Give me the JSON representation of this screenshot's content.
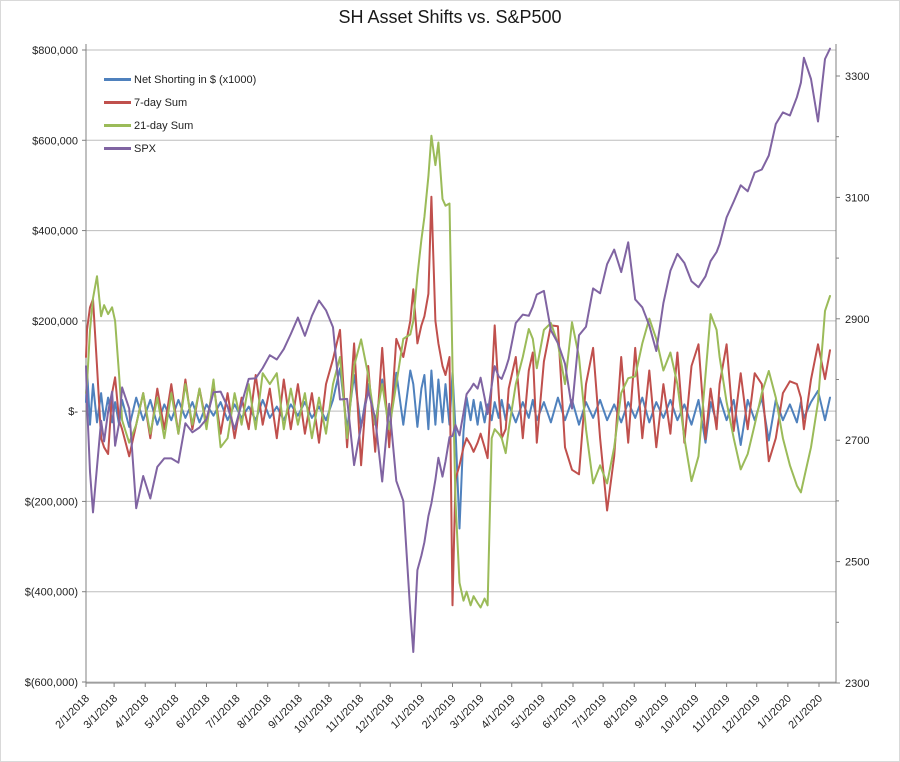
{
  "chart_data": {
    "type": "line",
    "title": "SH Asset Shifts vs. S&P500",
    "x_axis": {
      "unit": "date",
      "start_date": "2/1/2018",
      "end_date": "2/1/2020",
      "tick_labels": [
        "2/1/2018",
        "3/1/2018",
        "4/1/2018",
        "5/1/2018",
        "6/1/2018",
        "7/1/2018",
        "8/1/2018",
        "9/1/2018",
        "10/1/2018",
        "11/1/2018",
        "12/1/2018",
        "1/1/2019",
        "2/1/2019",
        "3/1/2019",
        "4/1/2019",
        "5/1/2019",
        "6/1/2019",
        "7/1/2019",
        "8/1/2019",
        "9/1/2019",
        "10/1/2019",
        "11/1/2019",
        "12/1/2019",
        "1/1/2020",
        "2/1/2020"
      ],
      "tick_day_offsets": [
        0,
        28,
        59,
        89,
        120,
        150,
        181,
        212,
        242,
        273,
        303,
        334,
        365,
        393,
        424,
        454,
        485,
        515,
        546,
        577,
        607,
        638,
        668,
        699,
        730
      ]
    },
    "y_left_axis": {
      "tick_labels": [
        "$800,000",
        "$600,000",
        "$400,000",
        "$200,000",
        "$-",
        "$(200,000)",
        "$(400,000)",
        "$(600,000)"
      ],
      "tick_values": [
        800000,
        600000,
        400000,
        200000,
        0,
        -200000,
        -400000,
        -600000
      ],
      "range": [
        -602000,
        813000
      ],
      "gridlines": true
    },
    "y_right_axis": {
      "tick_labels": [
        "3300",
        "3100",
        "2900",
        "2700",
        "2500",
        "2300"
      ],
      "tick_values": [
        3300,
        3100,
        2900,
        2700,
        2500,
        2300
      ],
      "minor_tick_values": [
        3200,
        3000,
        2800,
        2600,
        2400
      ],
      "range": [
        2300,
        3365
      ]
    },
    "series": [
      {
        "name": "Net Shorting in $ (x1000)",
        "color": "#4F81BD",
        "axis": "left"
      },
      {
        "name": "7-day Sum",
        "color": "#C0504D",
        "axis": "left"
      },
      {
        "name": "21-day Sum",
        "color": "#9BBB59",
        "axis": "left"
      },
      {
        "name": "SPX",
        "color": "#8064A2",
        "axis": "right"
      }
    ],
    "points_format": [
      "day_offset_from_2018-02-01",
      "net_shorting",
      "sum7",
      "sum21",
      "spx"
    ],
    "points": [
      [
        0,
        20000,
        120000,
        40000,
        2822
      ],
      [
        1,
        95000,
        180000,
        60000,
        2762
      ],
      [
        4,
        -30000,
        230000,
        180000,
        2648
      ],
      [
        7,
        60000,
        248000,
        250000,
        2581
      ],
      [
        11,
        -25000,
        100000,
        299000,
        2656
      ],
      [
        15,
        40000,
        -60000,
        210000,
        2732
      ],
      [
        18,
        -20000,
        -80000,
        235000,
        2698
      ],
      [
        22,
        30000,
        -95000,
        215000,
        2747
      ],
      [
        26,
        -25000,
        40000,
        230000,
        2780
      ],
      [
        29,
        20000,
        75000,
        200000,
        2691
      ],
      [
        33,
        -30000,
        -20000,
        80000,
        2728
      ],
      [
        36,
        25000,
        -40000,
        -20000,
        2787
      ],
      [
        43,
        -35000,
        -100000,
        -70000,
        2752
      ],
      [
        50,
        30000,
        -30000,
        -30000,
        2588
      ],
      [
        57,
        -20000,
        40000,
        40000,
        2641
      ],
      [
        64,
        25000,
        -60000,
        -50000,
        2604
      ],
      [
        71,
        -30000,
        50000,
        30000,
        2656
      ],
      [
        78,
        15000,
        -40000,
        -60000,
        2670
      ],
      [
        85,
        -20000,
        60000,
        40000,
        2670
      ],
      [
        92,
        25000,
        -50000,
        -50000,
        2663
      ],
      [
        99,
        -15000,
        70000,
        60000,
        2728
      ],
      [
        106,
        20000,
        -40000,
        -30000,
        2713
      ],
      [
        113,
        -25000,
        50000,
        50000,
        2721
      ],
      [
        120,
        15000,
        -30000,
        -40000,
        2735
      ],
      [
        127,
        -10000,
        60000,
        70000,
        2779
      ],
      [
        134,
        20000,
        -50000,
        -80000,
        2780
      ],
      [
        141,
        -20000,
        40000,
        -60000,
        2755
      ],
      [
        148,
        15000,
        -60000,
        40000,
        2718
      ],
      [
        155,
        -15000,
        30000,
        -30000,
        2760
      ],
      [
        162,
        10000,
        -40000,
        60000,
        2801
      ],
      [
        169,
        -20000,
        80000,
        -40000,
        2802
      ],
      [
        176,
        25000,
        -30000,
        84000,
        2819
      ],
      [
        183,
        -15000,
        50000,
        60000,
        2840
      ],
      [
        190,
        10000,
        -60000,
        84000,
        2833
      ],
      [
        197,
        -20000,
        70000,
        -40000,
        2850
      ],
      [
        204,
        15000,
        -40000,
        50000,
        2875
      ],
      [
        211,
        -10000,
        60000,
        -30000,
        2902
      ],
      [
        218,
        20000,
        -50000,
        40000,
        2872
      ],
      [
        225,
        -15000,
        40000,
        -60000,
        2905
      ],
      [
        232,
        10000,
        -70000,
        30000,
        2930
      ],
      [
        239,
        -20000,
        60000,
        -50000,
        2914
      ],
      [
        246,
        25000,
        115000,
        60000,
        2886
      ],
      [
        253,
        95000,
        180000,
        120000,
        2767
      ],
      [
        260,
        -40000,
        -80000,
        -60000,
        2768
      ],
      [
        267,
        80000,
        150000,
        100000,
        2659
      ],
      [
        274,
        -35000,
        -120000,
        159000,
        2723
      ],
      [
        281,
        60000,
        100000,
        80000,
        2781
      ],
      [
        288,
        -30000,
        -90000,
        -30000,
        2736
      ],
      [
        295,
        70000,
        140000,
        60000,
        2632
      ],
      [
        302,
        -40000,
        -80000,
        -40000,
        2760
      ],
      [
        309,
        85000,
        160000,
        60000,
        2633
      ],
      [
        316,
        -30000,
        120000,
        160000,
        2600
      ],
      [
        323,
        90000,
        200000,
        170000,
        2417
      ],
      [
        326,
        60000,
        270000,
        200000,
        2351
      ],
      [
        330,
        -35000,
        150000,
        300000,
        2486
      ],
      [
        334,
        50000,
        190000,
        380000,
        2510
      ],
      [
        337,
        80000,
        210000,
        430000,
        2532
      ],
      [
        341,
        -40000,
        260000,
        520000,
        2575
      ],
      [
        344,
        90000,
        475000,
        610000,
        2596
      ],
      [
        348,
        -30000,
        200000,
        545000,
        2635
      ],
      [
        351,
        70000,
        150000,
        595000,
        2671
      ],
      [
        355,
        -25000,
        100000,
        470000,
        2640
      ],
      [
        358,
        60000,
        80000,
        455000,
        2665
      ],
      [
        362,
        -30000,
        120000,
        460000,
        2705
      ],
      [
        365,
        85000,
        -430000,
        100000,
        2707
      ],
      [
        368,
        -40000,
        -150000,
        -200000,
        2725
      ],
      [
        372,
        -260000,
        -120000,
        -380000,
        2708
      ],
      [
        376,
        -45000,
        -80000,
        -420000,
        2745
      ],
      [
        379,
        30000,
        -60000,
        -400000,
        2776
      ],
      [
        383,
        -20000,
        -75000,
        -430000,
        2785
      ],
      [
        386,
        25000,
        -90000,
        -410000,
        2793
      ],
      [
        390,
        -30000,
        -70000,
        -425000,
        2785
      ],
      [
        393,
        20000,
        -50000,
        -435000,
        2803
      ],
      [
        397,
        -25000,
        -80000,
        -415000,
        2770
      ],
      [
        400,
        15000,
        -104000,
        -430000,
        2743
      ],
      [
        404,
        -20000,
        60000,
        -60000,
        2790
      ],
      [
        407,
        20000,
        190000,
        -40000,
        2822
      ],
      [
        411,
        -15000,
        40000,
        -50000,
        2805
      ],
      [
        414,
        25000,
        -60000,
        -60000,
        2801
      ],
      [
        418,
        -20000,
        -40000,
        -93000,
        2818
      ],
      [
        421,
        15000,
        50000,
        -40000,
        2834
      ],
      [
        428,
        -25000,
        120000,
        60000,
        2893
      ],
      [
        435,
        20000,
        -60000,
        120000,
        2907
      ],
      [
        441,
        -15000,
        90000,
        182000,
        2905
      ],
      [
        445,
        25000,
        130000,
        160000,
        2920
      ],
      [
        449,
        -20000,
        -70000,
        95000,
        2940
      ],
      [
        456,
        20000,
        110000,
        180000,
        2946
      ],
      [
        463,
        -25000,
        190000,
        195000,
        2881
      ],
      [
        470,
        30000,
        188000,
        150000,
        2860
      ],
      [
        477,
        -20000,
        -80000,
        60000,
        2826
      ],
      [
        484,
        25000,
        -130000,
        197000,
        2752
      ],
      [
        491,
        -30000,
        -140000,
        120000,
        2873
      ],
      [
        498,
        20000,
        60000,
        -40000,
        2887
      ],
      [
        505,
        -15000,
        140000,
        -160000,
        2950
      ],
      [
        512,
        25000,
        -60000,
        -120000,
        2942
      ],
      [
        519,
        -20000,
        -220000,
        -160000,
        2990
      ],
      [
        526,
        15000,
        -100000,
        -80000,
        3014
      ],
      [
        533,
        -25000,
        120000,
        40000,
        2977
      ],
      [
        540,
        20000,
        -70000,
        73000,
        3026
      ],
      [
        547,
        -15000,
        140000,
        77000,
        2932
      ],
      [
        554,
        30000,
        -60000,
        150000,
        2919
      ],
      [
        561,
        -25000,
        90000,
        205000,
        2889
      ],
      [
        568,
        20000,
        -80000,
        160000,
        2847
      ],
      [
        575,
        -15000,
        60000,
        90000,
        2926
      ],
      [
        582,
        25000,
        -50000,
        130000,
        2979
      ],
      [
        589,
        -20000,
        130000,
        60000,
        3007
      ],
      [
        596,
        15000,
        -70000,
        -60000,
        2992
      ],
      [
        603,
        -30000,
        100000,
        -155000,
        2962
      ],
      [
        610,
        25000,
        148000,
        -100000,
        2952
      ],
      [
        617,
        -70000,
        -62000,
        80000,
        2970
      ],
      [
        622,
        20000,
        50000,
        215000,
        2995
      ],
      [
        628,
        -25000,
        -40000,
        180000,
        3010
      ],
      [
        631,
        30000,
        60000,
        120000,
        3023
      ],
      [
        638,
        -20000,
        148000,
        20000,
        3067
      ],
      [
        645,
        25000,
        -44000,
        -60000,
        3093
      ],
      [
        652,
        -75000,
        84000,
        -129000,
        3120
      ],
      [
        659,
        25000,
        -40000,
        -95000,
        3110
      ],
      [
        666,
        -20000,
        84000,
        -30000,
        3141
      ],
      [
        673,
        30000,
        60000,
        40000,
        3146
      ],
      [
        680,
        -65000,
        -111000,
        89000,
        3169
      ],
      [
        687,
        25000,
        -60000,
        30000,
        3221
      ],
      [
        694,
        -20000,
        40000,
        -60000,
        3240
      ],
      [
        701,
        15000,
        66000,
        -120000,
        3235
      ],
      [
        708,
        -25000,
        60000,
        -165000,
        3265
      ],
      [
        712,
        20000,
        30000,
        -180000,
        3289
      ],
      [
        715,
        -15000,
        -40000,
        -150000,
        3330
      ],
      [
        722,
        20000,
        70000,
        -80000,
        3295
      ],
      [
        729,
        45000,
        148000,
        20000,
        3225
      ],
      [
        736,
        -20000,
        71000,
        222000,
        3328
      ],
      [
        741,
        30000,
        135000,
        255000,
        3345
      ]
    ],
    "legend_position": "top-left-inside"
  },
  "styles": {
    "grid_color": "#BDBDBD",
    "axis_color": "#808080",
    "text_color": "#1f1f1f",
    "background": "#FFFFFF",
    "series_line_width": 2
  }
}
